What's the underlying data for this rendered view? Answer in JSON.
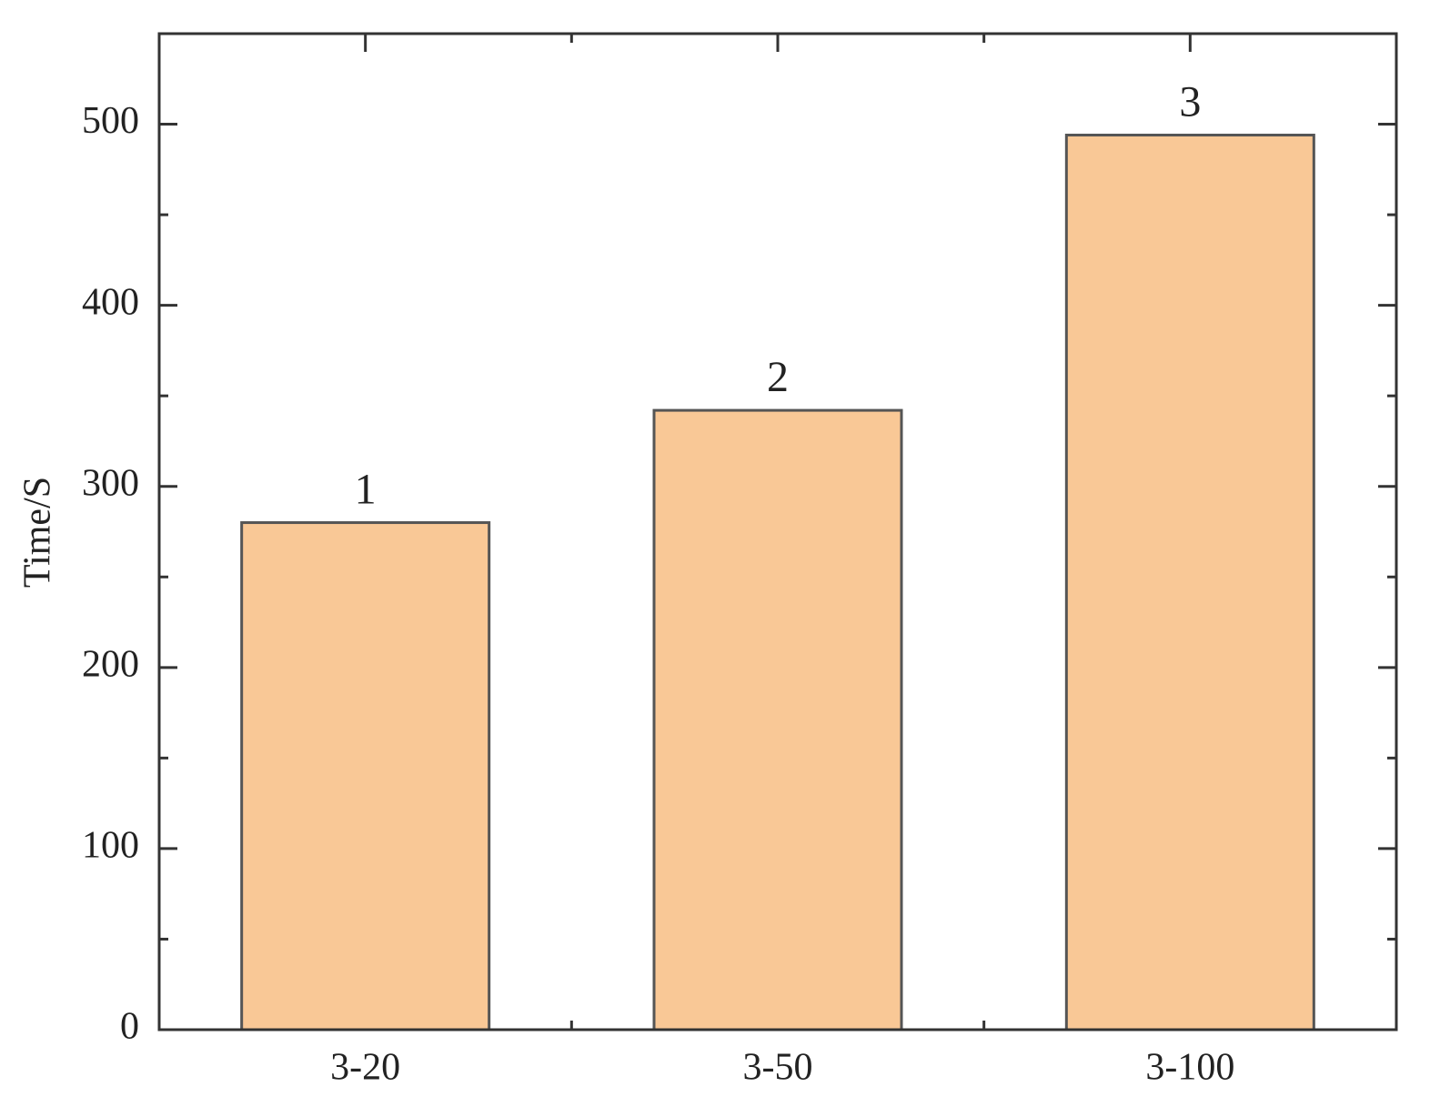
{
  "chart_data": {
    "type": "bar",
    "y_label": "Time/S",
    "categories": [
      "3-20",
      "3-50",
      "3-100"
    ],
    "values": [
      280,
      342,
      494
    ],
    "annotations": [
      "1",
      "2",
      "3"
    ],
    "color": "#f9c896",
    "ylim": [
      0,
      550
    ],
    "yticks": [
      0,
      100,
      200,
      300,
      400,
      500
    ],
    "yminorticks": [
      50,
      150,
      250,
      350,
      450,
      550
    ],
    "grid": false
  }
}
